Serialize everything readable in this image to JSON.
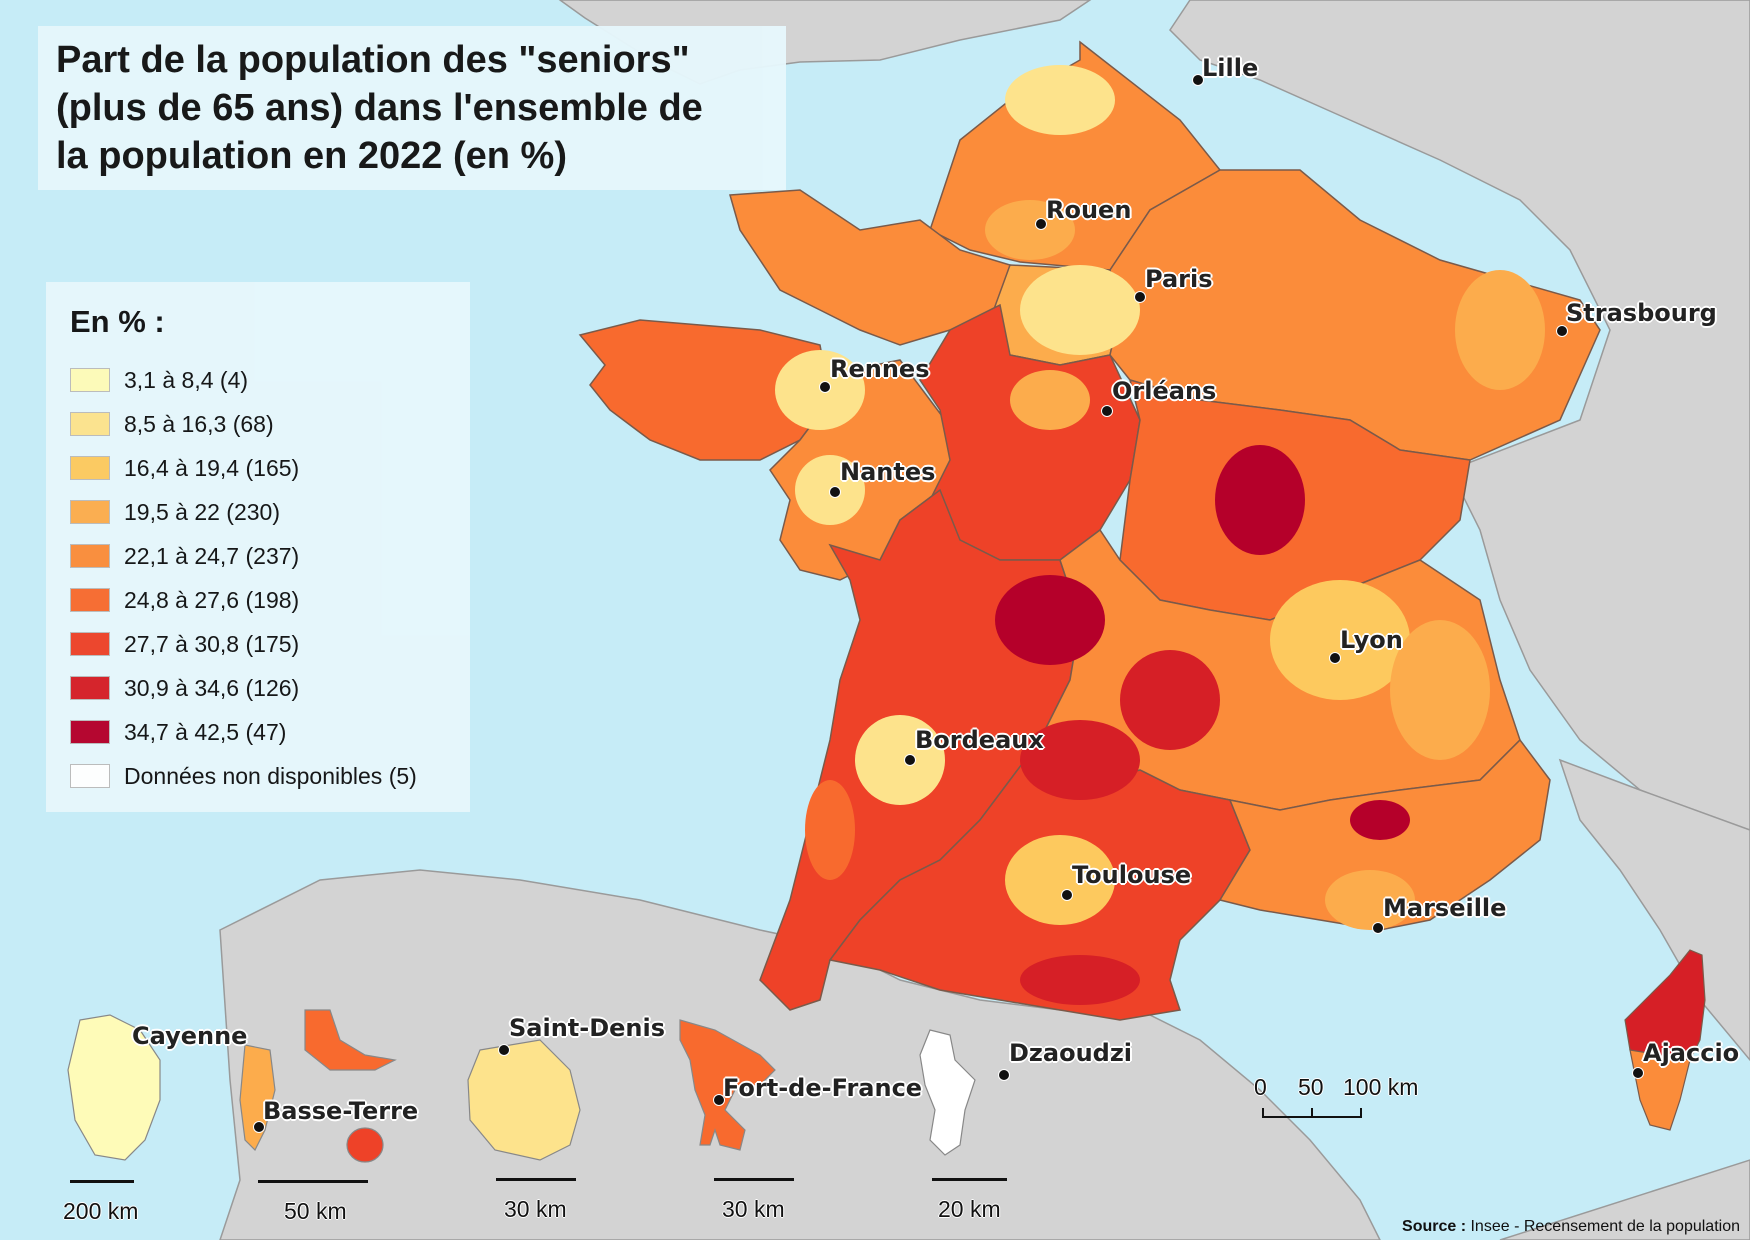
{
  "title_lines": [
    "Part de la population des \"seniors\"",
    "(plus de 65 ans) dans l'ensemble de",
    "la population en 2022 (en %)"
  ],
  "legend": {
    "title": "En % :",
    "classes": [
      {
        "label": "3,1 à 8,4 (4)",
        "color": "#fefbb8"
      },
      {
        "label": "8,5 à 16,3 (68)",
        "color": "#fde38c"
      },
      {
        "label": "16,4 à 19,4 (165)",
        "color": "#fdc95e"
      },
      {
        "label": "19,5 à 22 (230)",
        "color": "#fcac4c"
      },
      {
        "label": "22,1 à 24,7 (237)",
        "color": "#fb8c3a"
      },
      {
        "label": "24,8 à 27,6 (198)",
        "color": "#f86a2e"
      },
      {
        "label": "27,7 à 30,8 (175)",
        "color": "#ee4228"
      },
      {
        "label": "30,9 à 34,6 (126)",
        "color": "#d61f26"
      },
      {
        "label": "34,7 à 42,5 (47)",
        "color": "#b5002a"
      },
      {
        "label": "Données non disponibles (5)",
        "color": "#ffffff"
      }
    ]
  },
  "cities": [
    {
      "name": "Lille",
      "id": "lille"
    },
    {
      "name": "Rouen",
      "id": "rouen"
    },
    {
      "name": "Paris",
      "id": "paris"
    },
    {
      "name": "Strasbourg",
      "id": "strasbourg"
    },
    {
      "name": "Rennes",
      "id": "rennes"
    },
    {
      "name": "Orléans",
      "id": "orleans"
    },
    {
      "name": "Nantes",
      "id": "nantes"
    },
    {
      "name": "Lyon",
      "id": "lyon"
    },
    {
      "name": "Bordeaux",
      "id": "bordeaux"
    },
    {
      "name": "Toulouse",
      "id": "toulouse"
    },
    {
      "name": "Marseille",
      "id": "marseille"
    },
    {
      "name": "Ajaccio",
      "id": "ajaccio"
    },
    {
      "name": "Cayenne",
      "id": "cayenne"
    },
    {
      "name": "Basse-Terre",
      "id": "basse-terre"
    },
    {
      "name": "Saint-Denis",
      "id": "saint-denis"
    },
    {
      "name": "Fort-de-France",
      "id": "fort-de-france"
    },
    {
      "name": "Dzaoudzi",
      "id": "dzaoudzi"
    }
  ],
  "main_scale": {
    "labels": [
      "0",
      "50",
      "100 km"
    ]
  },
  "inset_scales": [
    "200 km",
    "50 km",
    "30 km",
    "30 km",
    "20 km"
  ],
  "source": {
    "label": "Source :",
    "text": "Insee - Recensement de la population"
  },
  "colors": {
    "sea": "#c6ecf7",
    "land_other": "#d3d3d3",
    "border": "#9a9a9a"
  }
}
